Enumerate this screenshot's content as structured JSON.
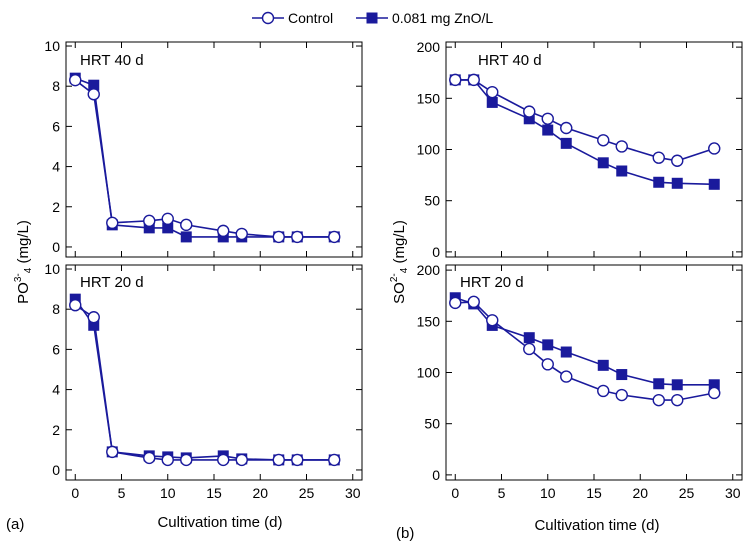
{
  "legend": {
    "items": [
      {
        "label": "Control",
        "marker": "open-circle"
      },
      {
        "label": "0.081 mg ZnO/L",
        "marker": "filled-square"
      }
    ]
  },
  "colors": {
    "series": "#1a1a9c",
    "axis": "#000000",
    "background": "#ffffff"
  },
  "panel_labels": {
    "a": "(a)",
    "b": "(b)"
  },
  "xlabels": {
    "a": "Cultivation time (d)",
    "b": "Cultivation time (d)"
  },
  "ylabels": {
    "a": "PO",
    "a_sup": "3-",
    "a_sub": "4",
    "a_unit": " (mg/L)",
    "b": "SO",
    "b_sup": "2-",
    "b_sub": "4",
    "b_unit": " (mg/L)"
  },
  "chart_data": [
    {
      "type": "line",
      "panel": "a-top",
      "annotation": "HRT 40 d",
      "xlim": [
        -1,
        31
      ],
      "ylim": [
        -0.5,
        10.2
      ],
      "xticks": [
        0,
        5,
        10,
        15,
        20,
        25,
        30
      ],
      "yticks": [
        0,
        2,
        4,
        6,
        8,
        10
      ],
      "series": [
        {
          "name": "Control",
          "x": [
            0,
            2,
            4,
            8,
            10,
            12,
            16,
            18,
            22,
            24,
            28
          ],
          "y": [
            8.3,
            7.6,
            1.2,
            1.3,
            1.4,
            1.1,
            0.8,
            0.65,
            0.5,
            0.5,
            0.5
          ]
        },
        {
          "name": "0.081 mg ZnO/L",
          "x": [
            0,
            2,
            4,
            8,
            10,
            12,
            16,
            18,
            22,
            24,
            28
          ],
          "y": [
            8.4,
            8.05,
            1.1,
            0.95,
            0.95,
            0.5,
            0.5,
            0.5,
            0.5,
            0.5,
            0.5
          ]
        }
      ]
    },
    {
      "type": "line",
      "panel": "a-bottom",
      "annotation": "HRT 20 d",
      "xlim": [
        -1,
        31
      ],
      "ylim": [
        -0.5,
        10.2
      ],
      "xticks": [
        0,
        5,
        10,
        15,
        20,
        25,
        30
      ],
      "yticks": [
        0,
        2,
        4,
        6,
        8,
        10
      ],
      "series": [
        {
          "name": "Control",
          "x": [
            0,
            2,
            4,
            8,
            10,
            12,
            16,
            18,
            22,
            24,
            28
          ],
          "y": [
            8.2,
            7.6,
            0.9,
            0.6,
            0.5,
            0.5,
            0.5,
            0.5,
            0.5,
            0.5,
            0.5
          ]
        },
        {
          "name": "0.081 mg ZnO/L",
          "x": [
            0,
            2,
            4,
            8,
            10,
            12,
            16,
            18,
            22,
            24,
            28
          ],
          "y": [
            8.5,
            7.2,
            0.9,
            0.7,
            0.65,
            0.6,
            0.7,
            0.55,
            0.5,
            0.5,
            0.5
          ]
        }
      ]
    },
    {
      "type": "line",
      "panel": "b-top",
      "annotation": "HRT 40 d",
      "xlim": [
        -1,
        31
      ],
      "ylim": [
        -5,
        205
      ],
      "xticks": [
        0,
        5,
        10,
        15,
        20,
        25,
        30
      ],
      "yticks": [
        0,
        50,
        100,
        150,
        200
      ],
      "series": [
        {
          "name": "Control",
          "x": [
            0,
            2,
            4,
            8,
            10,
            12,
            16,
            18,
            22,
            24,
            28
          ],
          "y": [
            168,
            168,
            156,
            137,
            130,
            121,
            109,
            103,
            92,
            89,
            101
          ]
        },
        {
          "name": "0.081 mg ZnO/L",
          "x": [
            0,
            2,
            4,
            8,
            10,
            12,
            16,
            18,
            22,
            24,
            28
          ],
          "y": [
            168,
            168,
            146,
            130,
            119,
            106,
            87,
            79,
            68,
            67,
            66
          ]
        }
      ]
    },
    {
      "type": "line",
      "panel": "b-bottom",
      "annotation": "HRT 20 d",
      "xlim": [
        -1,
        31
      ],
      "ylim": [
        -5,
        205
      ],
      "xticks": [
        0,
        5,
        10,
        15,
        20,
        25,
        30
      ],
      "yticks": [
        0,
        50,
        100,
        150,
        200
      ],
      "series": [
        {
          "name": "Control",
          "x": [
            0,
            2,
            4,
            8,
            10,
            12,
            16,
            18,
            22,
            24,
            28
          ],
          "y": [
            168,
            169,
            151,
            123,
            108,
            96,
            82,
            78,
            73,
            73,
            80
          ]
        },
        {
          "name": "0.081 mg ZnO/L",
          "x": [
            0,
            2,
            4,
            8,
            10,
            12,
            16,
            18,
            22,
            24,
            28
          ],
          "y": [
            173,
            167,
            146,
            134,
            127,
            120,
            107,
            98,
            89,
            88,
            88
          ]
        }
      ]
    }
  ]
}
